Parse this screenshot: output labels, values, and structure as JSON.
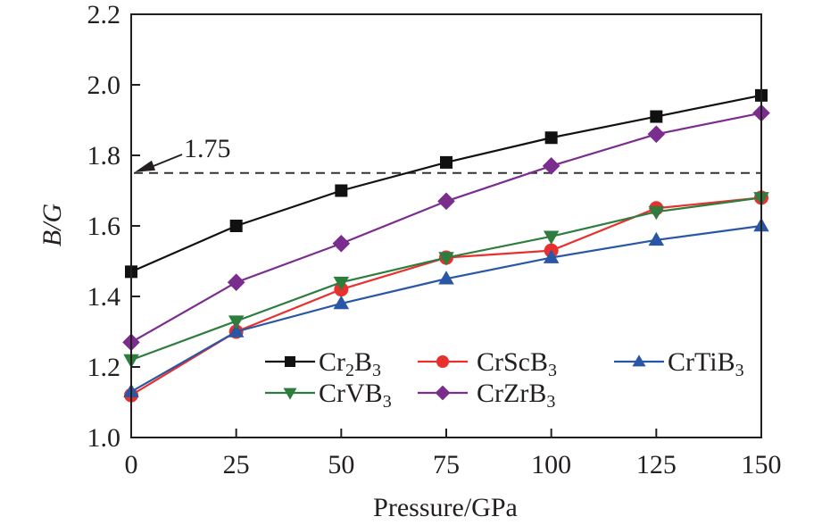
{
  "chart_data": {
    "type": "line",
    "title": "",
    "xlabel": "Pressure/GPa",
    "ylabel": "B/G",
    "xlim": [
      0,
      150
    ],
    "ylim": [
      1.0,
      2.2
    ],
    "x": [
      0,
      25,
      50,
      75,
      100,
      125,
      150
    ],
    "xticks": [
      0,
      25,
      50,
      75,
      100,
      125,
      150
    ],
    "xtick_labels": [
      "0",
      "25",
      "50",
      "75",
      "100",
      "125",
      "150"
    ],
    "yticks": [
      1.0,
      1.2,
      1.4,
      1.6,
      1.8,
      2.0,
      2.2
    ],
    "ytick_labels": [
      "1.0",
      "1.2",
      "1.4",
      "1.6",
      "1.8",
      "2.0",
      "2.2"
    ],
    "grid": false,
    "legend_position": "bottom-right inside",
    "series": [
      {
        "name": "Cr2B3",
        "label_main": "Cr",
        "label_sub1": "2",
        "label_mid": "B",
        "label_sub2": "3",
        "color": "#111111",
        "marker": "square",
        "values": [
          1.47,
          1.6,
          1.7,
          1.78,
          1.85,
          1.91,
          1.97
        ]
      },
      {
        "name": "CrScB3",
        "label_main": "CrSc",
        "label_sub1": "",
        "label_mid": "B",
        "label_sub2": "3",
        "color": "#e8312f",
        "marker": "circle",
        "values": [
          1.12,
          1.3,
          1.42,
          1.51,
          1.53,
          1.65,
          1.68
        ]
      },
      {
        "name": "CrTiB3",
        "label_main": "CrTi",
        "label_sub1": "",
        "label_mid": "B",
        "label_sub2": "3",
        "color": "#2a56a6",
        "marker": "triangle-up",
        "values": [
          1.13,
          1.3,
          1.38,
          1.45,
          1.51,
          1.56,
          1.6
        ]
      },
      {
        "name": "CrVB3",
        "label_main": "CrV",
        "label_sub1": "",
        "label_mid": "B",
        "label_sub2": "3",
        "color": "#2e7d3e",
        "marker": "triangle-down",
        "values": [
          1.22,
          1.33,
          1.44,
          1.51,
          1.57,
          1.64,
          1.68
        ]
      },
      {
        "name": "CrZrB3",
        "label_main": "CrZr",
        "label_sub1": "",
        "label_mid": "B",
        "label_sub2": "3",
        "color": "#7b2d8e",
        "marker": "diamond",
        "values": [
          1.27,
          1.44,
          1.55,
          1.67,
          1.77,
          1.86,
          1.92
        ]
      }
    ],
    "reference_line": {
      "value": 1.75,
      "style": "dashed",
      "color": "#333333"
    },
    "annotations": [
      {
        "text": "1.75",
        "points_to": 1.75
      }
    ]
  }
}
